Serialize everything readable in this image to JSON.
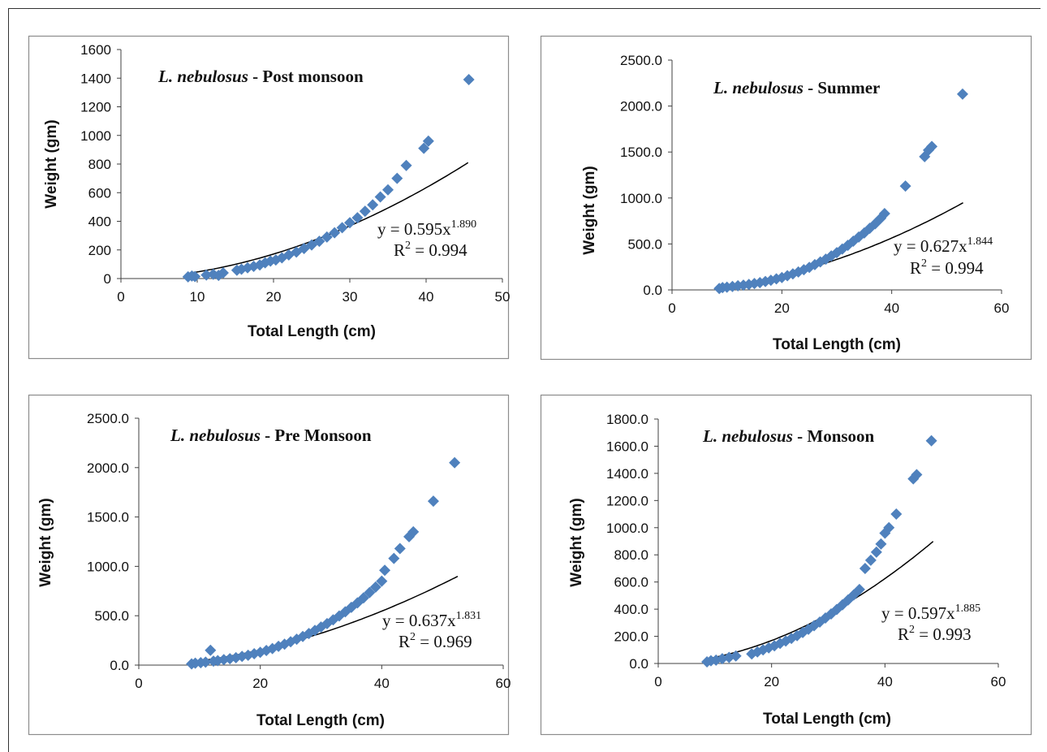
{
  "species": "L. nebulosus",
  "chart_data": [
    {
      "type": "scatter",
      "title_italic": "L. nebulosus",
      "title_rest": " - Post monsoon",
      "xlabel": "Total Length (cm)",
      "ylabel": "Weight (gm)",
      "xlim": [
        0,
        50
      ],
      "ylim": [
        0,
        1600
      ],
      "xticks": [
        "0",
        "10",
        "20",
        "30",
        "40",
        "50"
      ],
      "yticks": [
        "0",
        "200",
        "400",
        "600",
        "800",
        "1000",
        "1200",
        "1400",
        "1600"
      ],
      "equation": {
        "base": "y = 0.595x",
        "exponent": "1.890",
        "r2_prefix": "R",
        "r2_sup": "2",
        "r2_value": " = 0.994"
      },
      "fit": {
        "a": 0.595,
        "b": 1.89,
        "x_from": 9,
        "x_to": 45.5
      },
      "points": [
        [
          8.8,
          12
        ],
        [
          9.3,
          18
        ],
        [
          9.7,
          14
        ],
        [
          11.2,
          25
        ],
        [
          12.1,
          30
        ],
        [
          12.8,
          22
        ],
        [
          13.4,
          40
        ],
        [
          15.2,
          58
        ],
        [
          15.8,
          65
        ],
        [
          16.6,
          75
        ],
        [
          17.4,
          85
        ],
        [
          18.2,
          95
        ],
        [
          18.9,
          110
        ],
        [
          19.6,
          122
        ],
        [
          20.3,
          130
        ],
        [
          21.1,
          145
        ],
        [
          22.0,
          165
        ],
        [
          23.0,
          185
        ],
        [
          24.0,
          210
        ],
        [
          25.0,
          235
        ],
        [
          26.0,
          260
        ],
        [
          27.0,
          290
        ],
        [
          28.0,
          320
        ],
        [
          29.0,
          355
        ],
        [
          30.0,
          390
        ],
        [
          31.0,
          425
        ],
        [
          32.0,
          470
        ],
        [
          33.0,
          515
        ],
        [
          34.0,
          570
        ],
        [
          35.0,
          620
        ],
        [
          36.2,
          700
        ],
        [
          37.4,
          790
        ],
        [
          39.7,
          910
        ],
        [
          40.3,
          960
        ],
        [
          45.6,
          1390
        ]
      ]
    },
    {
      "type": "scatter",
      "title_italic": "L. nebulosus",
      "title_rest": " - Summer",
      "xlabel": "Total Length (cm)",
      "ylabel": "Weight (gm)",
      "xlim": [
        0,
        60
      ],
      "ylim": [
        0,
        2500
      ],
      "xticks": [
        "0",
        "20",
        "40",
        "60"
      ],
      "yticks": [
        "0.0",
        "500.0",
        "1000.0",
        "1500.0",
        "2000.0",
        "2500.0"
      ],
      "equation": {
        "base": "y = 0.627x",
        "exponent": "1.844",
        "r2_prefix": "R",
        "r2_sup": "2",
        "r2_value": " = 0.994"
      },
      "fit": {
        "a": 0.627,
        "b": 1.844,
        "x_from": 8.5,
        "x_to": 53
      },
      "points": [
        [
          8.6,
          15
        ],
        [
          9.2,
          25
        ],
        [
          10.0,
          30
        ],
        [
          11.0,
          38
        ],
        [
          12.0,
          45
        ],
        [
          13.0,
          52
        ],
        [
          14.0,
          60
        ],
        [
          15.0,
          70
        ],
        [
          16.0,
          80
        ],
        [
          17.0,
          92
        ],
        [
          18.0,
          105
        ],
        [
          19.0,
          120
        ],
        [
          20.0,
          135
        ],
        [
          21.0,
          155
        ],
        [
          22.0,
          175
        ],
        [
          23.0,
          195
        ],
        [
          24.0,
          220
        ],
        [
          25.0,
          245
        ],
        [
          26.0,
          275
        ],
        [
          27.0,
          305
        ],
        [
          28.0,
          335
        ],
        [
          29.0,
          370
        ],
        [
          30.0,
          405
        ],
        [
          31.0,
          445
        ],
        [
          32.0,
          485
        ],
        [
          33.0,
          530
        ],
        [
          34.0,
          575
        ],
        [
          35.0,
          620
        ],
        [
          36.0,
          670
        ],
        [
          37.0,
          720
        ],
        [
          38.0,
          780
        ],
        [
          38.7,
          830
        ],
        [
          42.5,
          1130
        ],
        [
          46.0,
          1450
        ],
        [
          46.7,
          1520
        ],
        [
          47.3,
          1560
        ],
        [
          52.9,
          2130
        ]
      ]
    },
    {
      "type": "scatter",
      "title_italic": "L. nebulosus",
      "title_rest": " - Pre Monsoon",
      "xlabel": "Total Length (cm)",
      "ylabel": "Weight (gm)",
      "xlim": [
        0,
        60
      ],
      "ylim": [
        0,
        2500
      ],
      "xticks": [
        "0",
        "20",
        "40",
        "60"
      ],
      "yticks": [
        "0.0",
        "500.0",
        "1000.0",
        "1500.0",
        "2000.0",
        "2500.0"
      ],
      "equation": {
        "base": "y = 0.637x",
        "exponent": "1.831",
        "r2_prefix": "R",
        "r2_sup": "2",
        "r2_value": " = 0.969"
      },
      "fit": {
        "a": 0.637,
        "b": 1.831,
        "x_from": 8.5,
        "x_to": 52.5
      },
      "points": [
        [
          8.7,
          12
        ],
        [
          9.3,
          20
        ],
        [
          10.2,
          25
        ],
        [
          11.0,
          30
        ],
        [
          11.8,
          150
        ],
        [
          12.3,
          40
        ],
        [
          13.0,
          45
        ],
        [
          14.0,
          55
        ],
        [
          15.0,
          65
        ],
        [
          16.0,
          75
        ],
        [
          17.0,
          88
        ],
        [
          18.0,
          100
        ],
        [
          19.0,
          115
        ],
        [
          20.0,
          130
        ],
        [
          21.0,
          148
        ],
        [
          22.0,
          168
        ],
        [
          23.0,
          190
        ],
        [
          24.0,
          212
        ],
        [
          25.0,
          236
        ],
        [
          26.0,
          262
        ],
        [
          27.0,
          290
        ],
        [
          28.0,
          320
        ],
        [
          29.0,
          352
        ],
        [
          30.0,
          385
        ],
        [
          31.0,
          420
        ],
        [
          32.0,
          458
        ],
        [
          33.0,
          498
        ],
        [
          34.0,
          540
        ],
        [
          35.0,
          585
        ],
        [
          36.0,
          630
        ],
        [
          37.0,
          680
        ],
        [
          38.0,
          735
        ],
        [
          39.0,
          790
        ],
        [
          40.0,
          850
        ],
        [
          40.5,
          960
        ],
        [
          42.0,
          1080
        ],
        [
          43.0,
          1180
        ],
        [
          44.5,
          1300
        ],
        [
          45.2,
          1350
        ],
        [
          48.5,
          1660
        ],
        [
          52.0,
          2050
        ]
      ]
    },
    {
      "type": "scatter",
      "title_italic": "L. nebulosus",
      "title_rest": " - Monsoon",
      "xlabel": "Total Length (cm)",
      "ylabel": "Weight (gm)",
      "xlim": [
        0,
        60
      ],
      "ylim": [
        0,
        1800
      ],
      "xticks": [
        "0",
        "20",
        "40",
        "60"
      ],
      "yticks": [
        "0.0",
        "200.0",
        "400.0",
        "600.0",
        "800.0",
        "1000.0",
        "1200.0",
        "1400.0",
        "1600.0",
        "1800.0"
      ],
      "equation": {
        "base": "y = 0.597x",
        "exponent": "1.885",
        "r2_prefix": "R",
        "r2_sup": "2",
        "r2_value": " = 0.993"
      },
      "fit": {
        "a": 0.597,
        "b": 1.885,
        "x_from": 8.5,
        "x_to": 48.5
      },
      "points": [
        [
          8.6,
          12
        ],
        [
          9.3,
          20
        ],
        [
          10.2,
          25
        ],
        [
          11.3,
          35
        ],
        [
          12.5,
          45
        ],
        [
          13.7,
          55
        ],
        [
          16.5,
          70
        ],
        [
          17.5,
          85
        ],
        [
          18.5,
          100
        ],
        [
          19.5,
          115
        ],
        [
          20.5,
          130
        ],
        [
          21.5,
          148
        ],
        [
          22.5,
          165
        ],
        [
          23.5,
          185
        ],
        [
          24.5,
          205
        ],
        [
          25.5,
          228
        ],
        [
          26.5,
          252
        ],
        [
          27.5,
          278
        ],
        [
          28.5,
          305
        ],
        [
          29.5,
          335
        ],
        [
          30.5,
          365
        ],
        [
          31.5,
          398
        ],
        [
          32.5,
          432
        ],
        [
          33.5,
          468
        ],
        [
          34.5,
          505
        ],
        [
          35.5,
          545
        ],
        [
          36.5,
          700
        ],
        [
          37.5,
          760
        ],
        [
          38.5,
          820
        ],
        [
          39.3,
          880
        ],
        [
          40.0,
          960
        ],
        [
          40.7,
          1000
        ],
        [
          42.0,
          1100
        ],
        [
          45.0,
          1360
        ],
        [
          45.6,
          1390
        ],
        [
          48.2,
          1640
        ]
      ]
    }
  ]
}
